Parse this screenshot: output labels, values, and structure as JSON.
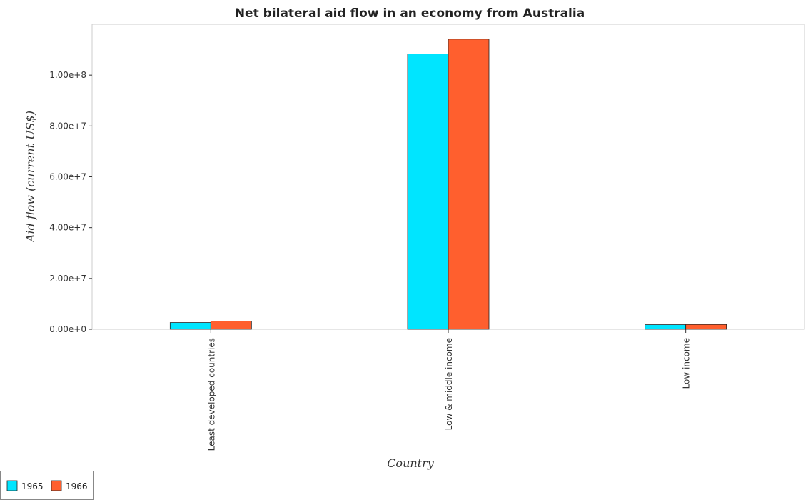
{
  "chart_data": {
    "type": "bar",
    "title": "Net bilateral aid flow in an economy from Australia",
    "xlabel": "Country",
    "ylabel": "Aid flow (current US$)",
    "categories": [
      "Least developed countries",
      "Low & middle income",
      "Low income"
    ],
    "series": [
      {
        "name": "1965",
        "color": "#00e5ff",
        "values": [
          2650000,
          108350000,
          1800000
        ]
      },
      {
        "name": "1966",
        "color": "#ff5f2e",
        "values": [
          3250000,
          114150000,
          1900000
        ]
      }
    ],
    "ylim": [
      0,
      120000000
    ],
    "yticks": [
      0,
      20000000,
      40000000,
      60000000,
      80000000,
      100000000
    ],
    "ytick_labels": [
      "0.00e+0",
      "2.00e+7",
      "4.00e+7",
      "6.00e+7",
      "8.00e+7",
      "1.00e+8"
    ],
    "grid": false,
    "legend_position": "bottom-left"
  }
}
